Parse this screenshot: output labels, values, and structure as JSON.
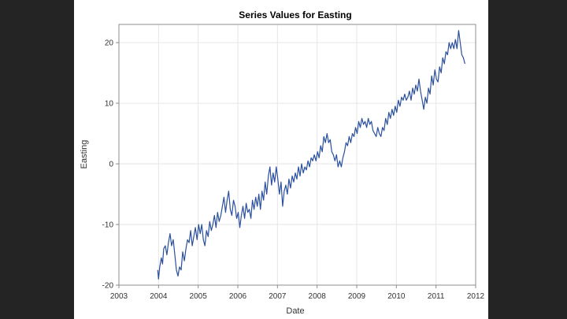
{
  "chart_data": {
    "type": "line",
    "title": "Series Values for Easting",
    "xlabel": "Date",
    "ylabel": "Easting",
    "xlim": [
      2003,
      2012
    ],
    "ylim": [
      -20,
      23
    ],
    "xticks": [
      "2003",
      "2004",
      "2005",
      "2006",
      "2007",
      "2008",
      "2009",
      "2010",
      "2011",
      "2012"
    ],
    "yticks": [
      "-20",
      "-10",
      "0",
      "10",
      "20"
    ],
    "grid": true,
    "colors": {
      "line": "#2a4f9e",
      "grid": "#e6e6e6",
      "axis": "#8c8c8c"
    },
    "series": [
      {
        "x": [
          2003.98,
          2004.0,
          2004.03,
          2004.07,
          2004.1,
          2004.13,
          2004.17,
          2004.21,
          2004.25,
          2004.29,
          2004.33,
          2004.37,
          2004.41,
          2004.45,
          2004.49,
          2004.53,
          2004.57,
          2004.61,
          2004.65,
          2004.69,
          2004.73,
          2004.77,
          2004.81,
          2004.85,
          2004.89,
          2004.93,
          2004.97,
          2005.01,
          2005.05,
          2005.09,
          2005.13,
          2005.17,
          2005.21,
          2005.25,
          2005.29,
          2005.33,
          2005.37,
          2005.41,
          2005.45,
          2005.49,
          2005.53,
          2005.57,
          2005.61,
          2005.65,
          2005.69,
          2005.73,
          2005.77,
          2005.81,
          2005.85,
          2005.89,
          2005.93,
          2005.97,
          2006.01,
          2006.05,
          2006.09,
          2006.13,
          2006.17,
          2006.21,
          2006.25,
          2006.29,
          2006.33,
          2006.37,
          2006.41,
          2006.45,
          2006.49,
          2006.53,
          2006.57,
          2006.61,
          2006.65,
          2006.69,
          2006.73,
          2006.77,
          2006.81,
          2006.85,
          2006.89,
          2006.93,
          2006.97,
          2007.01,
          2007.05,
          2007.09,
          2007.13,
          2007.17,
          2007.21,
          2007.25,
          2007.29,
          2007.33,
          2007.37,
          2007.41,
          2007.45,
          2007.49,
          2007.53,
          2007.57,
          2007.61,
          2007.65,
          2007.69,
          2007.73,
          2007.77,
          2007.81,
          2007.85,
          2007.89,
          2007.93,
          2007.97,
          2008.01,
          2008.05,
          2008.09,
          2008.13,
          2008.17,
          2008.21,
          2008.25,
          2008.29,
          2008.33,
          2008.37,
          2008.41,
          2008.45,
          2008.49,
          2008.53,
          2008.57,
          2008.61,
          2008.65,
          2008.69,
          2008.73,
          2008.77,
          2008.81,
          2008.85,
          2008.89,
          2008.93,
          2008.97,
          2009.01,
          2009.05,
          2009.09,
          2009.13,
          2009.17,
          2009.21,
          2009.25,
          2009.29,
          2009.33,
          2009.37,
          2009.41,
          2009.45,
          2009.49,
          2009.53,
          2009.57,
          2009.61,
          2009.65,
          2009.69,
          2009.73,
          2009.77,
          2009.81,
          2009.85,
          2009.89,
          2009.93,
          2009.97,
          2010.01,
          2010.05,
          2010.09,
          2010.13,
          2010.17,
          2010.21,
          2010.25,
          2010.29,
          2010.33,
          2010.37,
          2010.41,
          2010.45,
          2010.49,
          2010.53,
          2010.57,
          2010.61,
          2010.65,
          2010.69,
          2010.73,
          2010.77,
          2010.81,
          2010.85,
          2010.89,
          2010.93,
          2010.97,
          2011.01,
          2011.05,
          2011.09,
          2011.13,
          2011.17,
          2011.21,
          2011.25,
          2011.29,
          2011.33,
          2011.37,
          2011.41,
          2011.45,
          2011.49,
          2011.53,
          2011.57,
          2011.61,
          2011.65,
          2011.69,
          2011.73
        ],
        "values": [
          -17.5,
          -19.0,
          -17.0,
          -15.5,
          -16.5,
          -14.0,
          -13.5,
          -15.0,
          -13.0,
          -11.5,
          -13.5,
          -12.5,
          -15.0,
          -17.5,
          -18.5,
          -17.0,
          -17.5,
          -14.5,
          -16.0,
          -14.0,
          -12.5,
          -13.0,
          -11.0,
          -13.5,
          -12.0,
          -10.5,
          -12.5,
          -10.0,
          -11.5,
          -10.0,
          -12.5,
          -13.5,
          -11.0,
          -12.0,
          -9.5,
          -11.0,
          -10.0,
          -8.5,
          -10.5,
          -8.0,
          -9.5,
          -8.5,
          -7.0,
          -5.5,
          -8.0,
          -6.0,
          -4.5,
          -7.5,
          -8.5,
          -6.0,
          -7.0,
          -9.0,
          -8.0,
          -10.5,
          -8.5,
          -7.0,
          -9.0,
          -6.5,
          -8.0,
          -7.5,
          -9.0,
          -6.0,
          -7.5,
          -5.5,
          -7.0,
          -5.0,
          -7.5,
          -4.5,
          -6.0,
          -3.0,
          -5.0,
          -2.0,
          -0.5,
          -3.5,
          -1.5,
          -3.0,
          -0.5,
          -2.5,
          -5.0,
          -3.0,
          -7.0,
          -4.5,
          -3.5,
          -5.0,
          -2.5,
          -4.0,
          -2.0,
          -3.0,
          -1.5,
          -2.5,
          -0.5,
          -2.0,
          0.0,
          -1.5,
          -0.5,
          -1.0,
          0.5,
          -0.5,
          1.0,
          0.5,
          1.5,
          0.5,
          2.0,
          1.0,
          3.0,
          2.0,
          4.5,
          3.5,
          5.0,
          3.5,
          4.0,
          2.0,
          1.5,
          0.5,
          1.5,
          -0.5,
          0.5,
          -0.5,
          1.0,
          2.0,
          3.5,
          3.0,
          4.5,
          3.5,
          5.0,
          4.5,
          6.0,
          5.0,
          7.0,
          6.0,
          7.5,
          6.5,
          7.0,
          6.0,
          7.5,
          6.5,
          7.0,
          5.5,
          5.0,
          4.5,
          6.0,
          5.0,
          4.5,
          6.0,
          5.5,
          7.5,
          6.5,
          8.5,
          7.5,
          9.0,
          8.0,
          9.5,
          8.5,
          10.5,
          9.5,
          11.0,
          10.5,
          11.5,
          10.5,
          11.0,
          12.0,
          10.5,
          12.5,
          11.5,
          13.0,
          12.0,
          14.0,
          12.0,
          10.5,
          9.0,
          11.0,
          10.0,
          12.5,
          11.5,
          14.5,
          13.0,
          15.5,
          14.0,
          13.5,
          16.0,
          15.0,
          17.5,
          16.5,
          18.5,
          18.0,
          20.0,
          19.0,
          20.0,
          19.0,
          20.5,
          19.0,
          22.0,
          20.0,
          18.0,
          17.5,
          16.5
        ]
      }
    ]
  }
}
